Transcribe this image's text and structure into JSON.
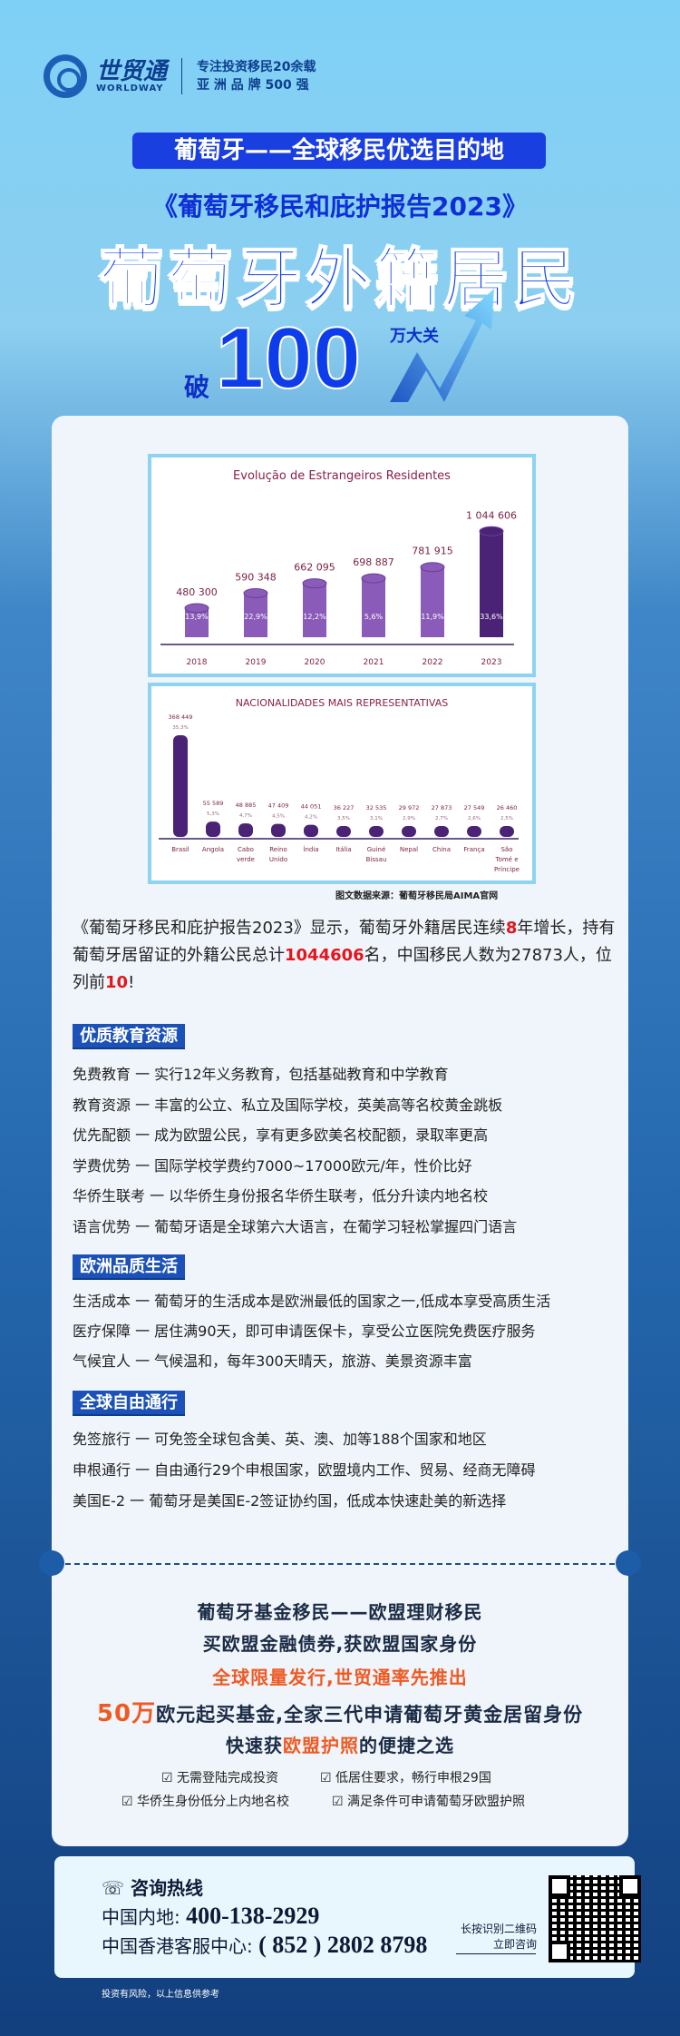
{
  "header": {
    "brand_cn": "世贸通",
    "brand_en": "WORLDWAY",
    "slogan_1": "专注投资移民20余载",
    "slogan_2": "亚 洲 品 牌 500 强"
  },
  "hero": {
    "banner": "葡萄牙——全球移民优选目的地",
    "report": "《葡萄牙移民和庇护报告2023》",
    "title": "葡萄牙外籍居民",
    "prefix": "破",
    "number": "100",
    "suffix": "万大关"
  },
  "chart_data": [
    {
      "type": "bar",
      "title": "Evolução de Estrangeiros Residentes",
      "categories": [
        "2018",
        "2019",
        "2020",
        "2021",
        "2022",
        "2023"
      ],
      "values": [
        480300,
        590348,
        662095,
        698887,
        781915,
        1044606
      ],
      "value_labels": [
        "480 300",
        "590 348",
        "662 095",
        "698 887",
        "781 915",
        "1 044 606"
      ],
      "growth_labels": [
        "13,9%",
        "22,9%",
        "12,2%",
        "5,6%",
        "11,9%",
        "33,6%"
      ],
      "bar_color": "#8a5bb8",
      "highlight_color": "#4a2377"
    },
    {
      "type": "bar",
      "title": "NACIONALIDADES MAIS REPRESENTATIVAS",
      "categories": [
        "Brasil",
        "Angola",
        "Cabo verde",
        "Reino Unido",
        "Índia",
        "Itália",
        "Guiné Bissau",
        "Nepal",
        "China",
        "França",
        "São Tomé e Príncipe"
      ],
      "values": [
        368449,
        55589,
        48885,
        47409,
        44051,
        36227,
        32535,
        29972,
        27873,
        27549,
        26460
      ],
      "value_labels": [
        "368 449",
        "55 589",
        "48 885",
        "47 409",
        "44 051",
        "36 227",
        "32 535",
        "29 972",
        "27 873",
        "27 549",
        "26 460"
      ],
      "share_labels": [
        "35,3%",
        "5,3%",
        "4,7%",
        "4,5%",
        "4,2%",
        "3,5%",
        "3,1%",
        "2,9%",
        "2,7%",
        "2,6%",
        "2,5%"
      ],
      "bar_color": "#4a2377"
    }
  ],
  "source": "图文数据来源：葡萄牙移民局AIMA官网",
  "intro": {
    "p1": "《葡萄牙移民和庇护报告2023》显示，葡萄牙外籍居民连续",
    "years": "8",
    "p2": "年增长，持有葡萄牙居留证的外籍公民总计",
    "total": "1044606",
    "p3": "名，中国移民人数为27873人，位列前",
    "rank": "10",
    "p4": "!"
  },
  "sections": [
    {
      "title": "优质教育资源",
      "items": [
        "免费教育 一 实行12年义务教育，包括基础教育和中学教育",
        "教育资源 一 丰富的公立、私立及国际学校，英美高等名校黄金跳板",
        "优先配额 一 成为欧盟公民，享有更多欧美名校配额，录取率更高",
        "学费优势 一 国际学校学费约7000~17000欧元/年，性价比好",
        "华侨生联考 一 以华侨生身份报名华侨生联考，低分升读内地名校",
        "语言优势 一 葡萄牙语是全球第六大语言，在葡学习轻松掌握四门语言"
      ]
    },
    {
      "title": "欧洲品质生活",
      "items": [
        "生活成本 一 葡萄牙的生活成本是欧洲最低的国家之一,低成本享受高质生活",
        "医疗保障 一 居住满90天，即可申请医保卡，享受公立医院免费医疗服务",
        "气候宜人 一 气候温和，每年300天晴天，旅游、美景资源丰富"
      ]
    },
    {
      "title": "全球自由通行",
      "items": [
        "免签旅行 一 可免签全球包含美、英、澳、加等188个国家和地区",
        "申根通行 一 自由通行29个申根国家，欧盟境内工作、贸易、经商无障碍",
        "美国E-2 一 葡萄牙是美国E-2签证协约国，低成本快速赴美的新选择"
      ]
    }
  ],
  "fund": {
    "line1": "葡萄牙基金移民——欧盟理财移民",
    "line2": "买欧盟金融债券,获欧盟国家身份",
    "line3": "全球限量发行,世贸通率先推出",
    "line4_amount": "50万",
    "line4_rest": "欧元起买基金,全家三代申请葡萄牙黄金居留身份",
    "line5_a": "快速获",
    "line5_b": "欧盟护照",
    "line5_c": "的便捷之选",
    "checks": [
      "无需登陆完成投资",
      "低居住要求，畅行申根29国",
      "华侨生身份低分上内地名校",
      "满足条件可申请葡萄牙欧盟护照"
    ]
  },
  "contact": {
    "title": "咨询热线",
    "mainland_label": "中国内地:",
    "mainland_number": "400-138-2929",
    "hk_label": "中国香港客服中心:",
    "hk_number": "( 852 ) 2802  8798",
    "qr_hint_1": "长按识别二维码",
    "qr_hint_2": "立即咨询"
  },
  "disclaimer": "投资有风险，以上信息供参考"
}
